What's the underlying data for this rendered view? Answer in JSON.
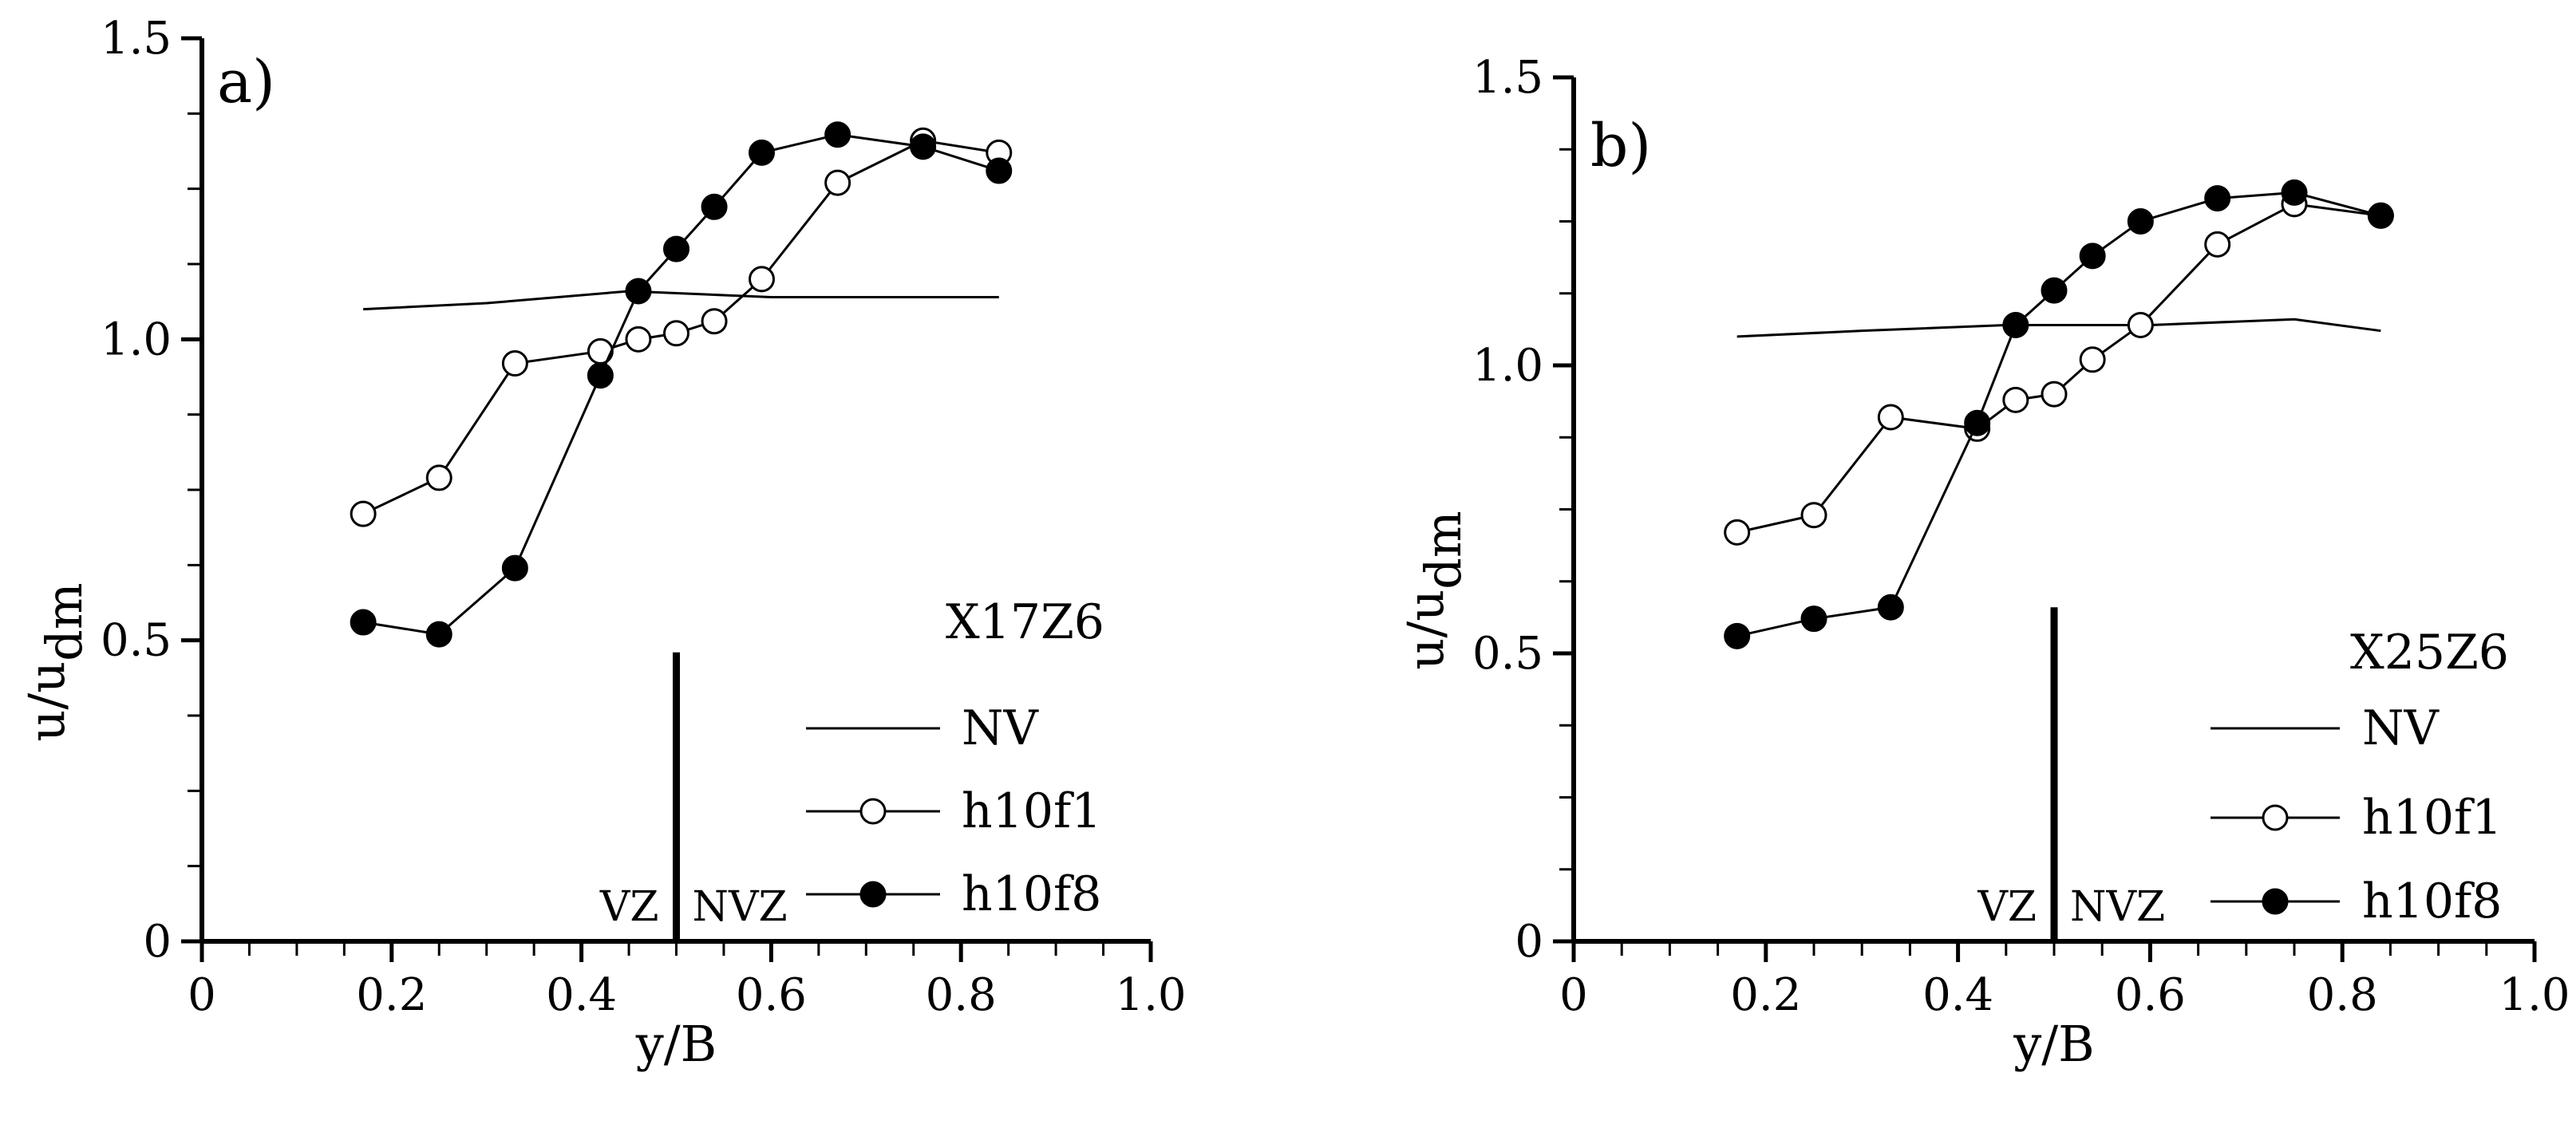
{
  "chart_data": [
    {
      "type": "line",
      "panel_label": "a)",
      "case_label": "X17Z6",
      "xlabel": "y/B",
      "ylabel_main": "u/u",
      "ylabel_sub": "dm",
      "xlim": [
        0,
        1.0
      ],
      "ylim": [
        0,
        1.5
      ],
      "xticks": [
        0,
        0.2,
        0.4,
        0.6,
        0.8,
        1.0
      ],
      "xtick_labels": [
        "0",
        "0.2",
        "0.4",
        "0.6",
        "0.8",
        "1.0"
      ],
      "yticks": [
        0,
        0.5,
        1.0,
        1.5
      ],
      "ytick_labels": [
        "0",
        "0.5",
        "1.0",
        "1.5"
      ],
      "divider_x": 0.5,
      "divider_y_top": 0.48,
      "zone_left_label": "VZ",
      "zone_right_label": "NVZ",
      "series": [
        {
          "name": "NV",
          "marker": "none",
          "x": [
            0.17,
            0.3,
            0.45,
            0.6,
            0.75,
            0.84
          ],
          "y": [
            1.05,
            1.06,
            1.08,
            1.07,
            1.07,
            1.07
          ]
        },
        {
          "name": "h10f1",
          "marker": "open",
          "x": [
            0.17,
            0.25,
            0.33,
            0.42,
            0.46,
            0.5,
            0.54,
            0.59,
            0.67,
            0.76,
            0.84
          ],
          "y": [
            0.71,
            0.77,
            0.96,
            0.98,
            1.0,
            1.01,
            1.03,
            1.1,
            1.26,
            1.33,
            1.31
          ]
        },
        {
          "name": "h10f8",
          "marker": "filled",
          "x": [
            0.17,
            0.25,
            0.33,
            0.42,
            0.46,
            0.5,
            0.54,
            0.59,
            0.67,
            0.76,
            0.84
          ],
          "y": [
            0.53,
            0.51,
            0.62,
            0.94,
            1.08,
            1.15,
            1.22,
            1.31,
            1.34,
            1.32,
            1.28
          ]
        }
      ]
    },
    {
      "type": "line",
      "panel_label": "b)",
      "case_label": "X25Z6",
      "xlabel": "y/B",
      "ylabel_main": "u/u",
      "ylabel_sub": "dm",
      "xlim": [
        0,
        1.0
      ],
      "ylim": [
        0,
        1.5
      ],
      "xticks": [
        0,
        0.2,
        0.4,
        0.6,
        0.8,
        1.0
      ],
      "xtick_labels": [
        "0",
        "0.2",
        "0.4",
        "0.6",
        "0.8",
        "1.0"
      ],
      "yticks": [
        0,
        0.5,
        1.0,
        1.5
      ],
      "ytick_labels": [
        "0",
        "0.5",
        "1.0",
        "1.5"
      ],
      "divider_x": 0.5,
      "divider_y_top": 0.58,
      "zone_left_label": "VZ",
      "zone_right_label": "NVZ",
      "series": [
        {
          "name": "NV",
          "marker": "none",
          "x": [
            0.17,
            0.3,
            0.45,
            0.6,
            0.75,
            0.84
          ],
          "y": [
            1.05,
            1.06,
            1.07,
            1.07,
            1.08,
            1.06
          ]
        },
        {
          "name": "h10f1",
          "marker": "open",
          "x": [
            0.17,
            0.25,
            0.33,
            0.42,
            0.46,
            0.5,
            0.54,
            0.59,
            0.67,
            0.75,
            0.84
          ],
          "y": [
            0.71,
            0.74,
            0.91,
            0.89,
            0.94,
            0.95,
            1.01,
            1.07,
            1.21,
            1.28,
            1.26
          ]
        },
        {
          "name": "h10f8",
          "marker": "filled",
          "x": [
            0.17,
            0.25,
            0.33,
            0.42,
            0.46,
            0.5,
            0.54,
            0.59,
            0.67,
            0.75,
            0.84
          ],
          "y": [
            0.53,
            0.56,
            0.58,
            0.9,
            1.07,
            1.13,
            1.19,
            1.25,
            1.29,
            1.3,
            1.26
          ]
        }
      ]
    }
  ]
}
